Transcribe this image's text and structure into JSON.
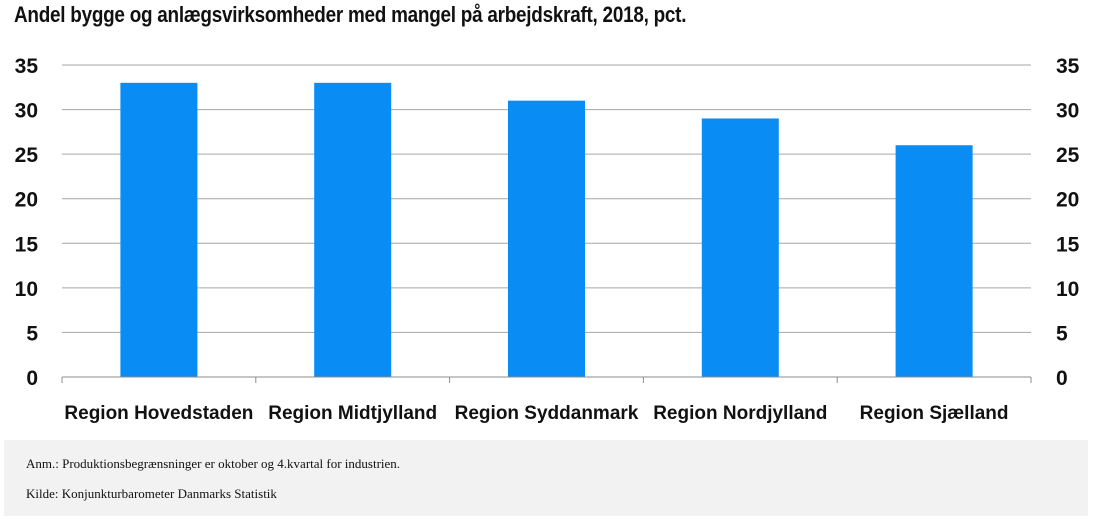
{
  "chart_data": {
    "type": "bar",
    "title": "Andel bygge og anlægsvirksomheder med mangel på arbejdskraft, 2018, pct.",
    "categories": [
      "Region Hovedstaden",
      "Region Midtjylland",
      "Region Syddanmark",
      "Region Nordjylland",
      "Region Sjælland"
    ],
    "values": [
      33,
      33,
      31,
      29,
      26
    ],
    "xlabel": "",
    "ylabel": "",
    "ylim": [
      0,
      35
    ],
    "yticks": [
      0,
      5,
      10,
      15,
      20,
      25,
      30,
      35
    ],
    "y_axis_sides": "both",
    "grid": true,
    "legend": "none",
    "bar_color": "#0a8cf5",
    "grid_color": "#a6a6a6"
  },
  "notes": {
    "anm": "Anm.: Produktionsbegrænsninger er oktober og 4.kvartal for industrien.",
    "kilde": "Kilde: Konjunkturbarometer Danmarks Statistik"
  }
}
